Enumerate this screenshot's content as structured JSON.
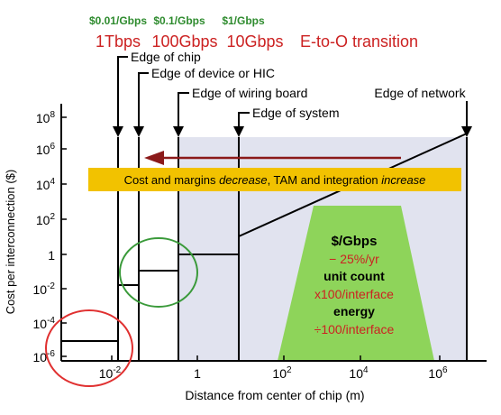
{
  "header": {
    "prices": [
      "$0.01/Gbps",
      "$0.1/Gbps",
      "$1/Gbps"
    ],
    "rates": [
      "1Tbps",
      "100Gbps",
      "10Gbps"
    ],
    "transition": "E-to-O transition"
  },
  "edges": {
    "chip": "Edge of chip",
    "device": "Edge of device or HIC",
    "board": "Edge of wiring board",
    "system": "Edge of system",
    "network": "Edge of network"
  },
  "banner": {
    "part1": "Cost and margins ",
    "decrease": "decrease",
    "part2": ", TAM and integration ",
    "increase": "increase"
  },
  "trap": {
    "title": "$/Gbps",
    "rate": "− 25%/yr",
    "unit_title": "unit count",
    "unit_value": "x100/interface",
    "energy_title": "energy",
    "energy_value": "÷100/interface"
  },
  "axes": {
    "ylabel": "Cost per interconnection ($)",
    "xlabel": "Distance from center of chip (m)",
    "yticks": [
      {
        "base": "10",
        "exp": "8"
      },
      {
        "base": "10",
        "exp": "6"
      },
      {
        "base": "10",
        "exp": "4"
      },
      {
        "base": "10",
        "exp": "2"
      },
      {
        "base": "1",
        "exp": ""
      },
      {
        "base": "10",
        "exp": "-2"
      },
      {
        "base": "10",
        "exp": "-4"
      },
      {
        "base": "10",
        "exp": "-6"
      }
    ],
    "xticks": [
      {
        "base": "10",
        "exp": "-2"
      },
      {
        "base": "1",
        "exp": ""
      },
      {
        "base": "10",
        "exp": "2"
      },
      {
        "base": "10",
        "exp": "4"
      },
      {
        "base": "10",
        "exp": "6"
      }
    ]
  },
  "colors": {
    "price_green": "#2e8b2e",
    "rate_red": "#cc2222",
    "banner_fill": "#f2c200",
    "trap_fill": "#8ed45a",
    "shade": "#e1e3ef",
    "arrow": "#8b1a1a",
    "circle_red": "#e03030",
    "circle_green": "#3a9a3a"
  }
}
